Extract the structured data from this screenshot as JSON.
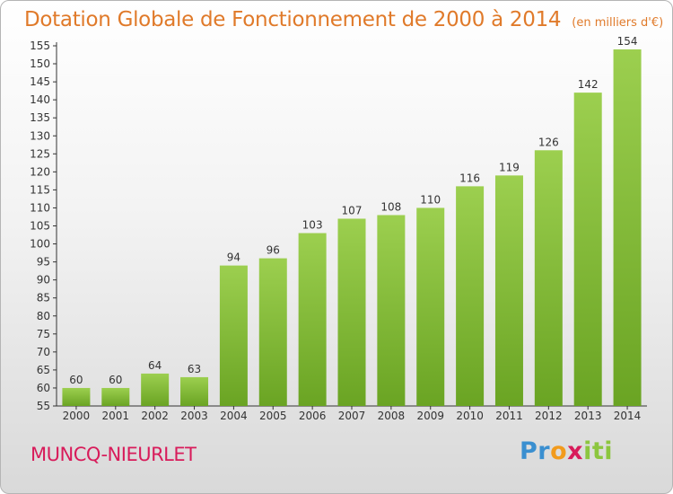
{
  "title": "Dotation Globale de Fonctionnement de 2000 à 2014",
  "subtitle": "(en milliers d'€)",
  "commune": "MUNCQ-NIEURLET",
  "brand": {
    "p1": "Pr",
    "p2": "o",
    "p3": "x",
    "p4": "iti"
  },
  "colors": {
    "bar_light": "#9ccf4f",
    "bar_dark": "#6aa423",
    "title": "#e07a2a",
    "commune": "#d81b5a"
  },
  "chart_data": {
    "type": "bar",
    "title": "Dotation Globale de Fonctionnement de 2000 à 2014",
    "subtitle": "(en milliers d'€)",
    "categories": [
      "2000",
      "2001",
      "2002",
      "2003",
      "2004",
      "2005",
      "2006",
      "2007",
      "2008",
      "2009",
      "2010",
      "2011",
      "2012",
      "2013",
      "2014"
    ],
    "values": [
      60,
      60,
      64,
      63,
      94,
      96,
      103,
      107,
      108,
      110,
      116,
      119,
      126,
      142,
      154
    ],
    "ylim": [
      55,
      155
    ],
    "ytick_step": 5,
    "grid": false
  }
}
